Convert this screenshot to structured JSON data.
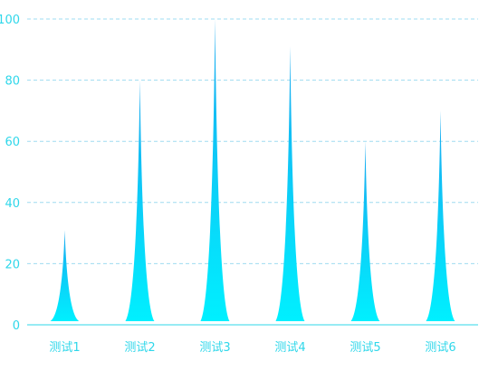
{
  "chart_data": {
    "type": "bar",
    "categories": [
      "测试1",
      "测试2",
      "测试3",
      "测试4",
      "测试5",
      "测试6"
    ],
    "values": [
      31,
      80,
      100,
      91,
      60,
      70
    ],
    "y_ticks": [
      "0",
      "20",
      "40",
      "60",
      "80",
      "100"
    ],
    "ylim": [
      0,
      100
    ],
    "grid": true,
    "colors": {
      "bar_top": "#1aa8f0",
      "bar_bottom": "#00f0ff",
      "axis": "#2fd7ea",
      "grid": "#9fdcf0",
      "text": "#2fd7ea"
    }
  }
}
